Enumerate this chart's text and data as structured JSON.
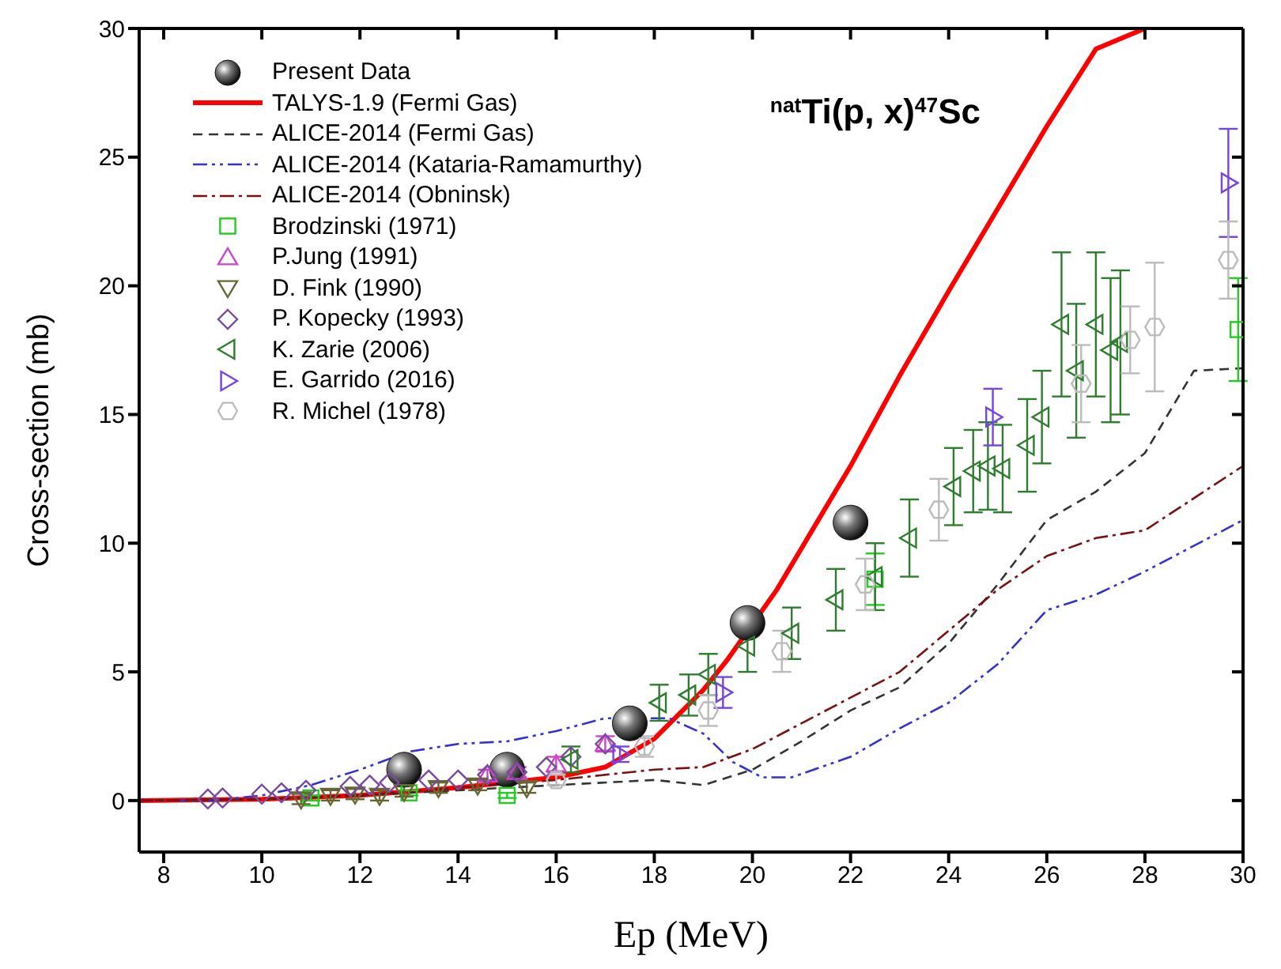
{
  "chart_data": {
    "type": "scatter",
    "title": "$^{nat}$Ti(p, x)$^{47}$Sc",
    "xlabel": "Ep (MeV)",
    "ylabel": "Cross-section (mb)",
    "xlim": [
      7.5,
      30
    ],
    "xticks": [
      8,
      10,
      12,
      14,
      16,
      18,
      20,
      22,
      24,
      26,
      28,
      30
    ],
    "ylim": [
      -2,
      30
    ],
    "yticks": [
      0,
      5,
      10,
      15,
      20,
      25,
      30
    ],
    "legend": "top left",
    "series": [
      {
        "name": "Present Data",
        "marker": "circle",
        "color": "#111111",
        "x": [
          12.9,
          15.0,
          17.5,
          19.9,
          22.0
        ],
        "values": [
          1.2,
          1.2,
          3.0,
          6.9,
          10.8
        ]
      },
      {
        "name": "TALYS-1.9 (Fermi Gas)",
        "type": "line",
        "line_style": "solid",
        "color": "#ff0000",
        "x": [
          7.5,
          10,
          12,
          14,
          16,
          17,
          18,
          19,
          19.5,
          20.5,
          21,
          22,
          23,
          24,
          25,
          26,
          27,
          28
        ],
        "values": [
          0,
          0.05,
          0.2,
          0.5,
          0.9,
          1.3,
          2.4,
          4.3,
          5.5,
          8.2,
          9.8,
          13,
          16.5,
          19.8,
          23,
          26.2,
          29.2,
          30
        ]
      },
      {
        "name": "ALICE-2014 (Fermi Gas)",
        "type": "line",
        "line_style": "dashed",
        "color": "#333333",
        "x": [
          7.5,
          10,
          12,
          14,
          16,
          18,
          19,
          20,
          21,
          22,
          23,
          24,
          25,
          26,
          27,
          28,
          29,
          30
        ],
        "values": [
          0,
          0.05,
          0.2,
          0.4,
          0.6,
          0.8,
          0.6,
          1.2,
          2.3,
          3.5,
          4.4,
          6.1,
          8.4,
          10.9,
          12.0,
          13.5,
          16.7,
          16.8
        ]
      },
      {
        "name": "ALICE-2014 (Kataria-Ramamurthy)",
        "type": "line",
        "line_style": "dashdotdot",
        "color": "#3333cc",
        "x": [
          7.5,
          9,
          10,
          11,
          12,
          13,
          14,
          15,
          16,
          17,
          18.3,
          19,
          19.6,
          20.2,
          20.8,
          22,
          23,
          24,
          25,
          26,
          27,
          28,
          30
        ],
        "values": [
          0,
          0,
          0.2,
          0.6,
          1.2,
          1.9,
          2.2,
          2.3,
          2.7,
          3.2,
          3.2,
          2.6,
          1.5,
          0.9,
          0.9,
          1.7,
          2.8,
          3.8,
          5.3,
          7.4,
          8.0,
          8.9,
          10.9
        ]
      },
      {
        "name": "ALICE-2014 (Obninsk)",
        "type": "line",
        "line_style": "dashdot",
        "color": "#7a1010",
        "x": [
          7.5,
          10,
          12,
          14,
          16,
          18,
          19,
          20,
          21,
          22,
          23,
          24,
          25,
          26,
          27,
          28,
          30
        ],
        "values": [
          0,
          0.05,
          0.2,
          0.5,
          0.8,
          1.2,
          1.3,
          2.0,
          3.0,
          4.0,
          5.0,
          6.6,
          8.2,
          9.5,
          10.2,
          10.5,
          13.0
        ]
      },
      {
        "name": "Brodzinski (1971)",
        "marker": "square",
        "color": "#22cc22",
        "x": [
          11.0,
          13.0,
          15.0,
          22.5,
          29.9
        ],
        "values": [
          0.1,
          0.3,
          0.2,
          8.6,
          18.3
        ],
        "errors": [
          0.1,
          0.1,
          0.1,
          1,
          2
        ]
      },
      {
        "name": "P.Jung (1991)",
        "marker": "triangle",
        "color": "#cc44cc",
        "x": [
          14.6,
          15.2,
          16.0,
          17.0
        ],
        "values": [
          1.0,
          1.1,
          1.4,
          2.2
        ],
        "errors": [
          0.2,
          0.2,
          0.3,
          0.3
        ]
      },
      {
        "name": "D. Fink (1990)",
        "marker": "triangle-down",
        "color": "#666633",
        "x": [
          10.8,
          11.4,
          11.9,
          12.4,
          12.9,
          13.6,
          14.4,
          15.4
        ],
        "values": [
          0.06,
          0.2,
          0.25,
          0.2,
          0.35,
          0.5,
          0.6,
          0.5
        ],
        "errors": [
          0.2,
          0.2,
          0.2,
          0.2,
          0.2,
          0.2,
          0.2,
          0.2
        ]
      },
      {
        "name": "P. Kopecky (1993)",
        "marker": "diamond",
        "color": "#7a4a9a",
        "x": [
          8.9,
          9.2,
          10.0,
          10.4,
          10.9,
          11.8,
          12.2,
          12.6,
          13.4,
          14.0,
          14.6,
          15.2,
          15.8,
          16.3,
          17.0
        ],
        "values": [
          0.06,
          0.1,
          0.25,
          0.3,
          0.4,
          0.55,
          0.6,
          0.7,
          0.8,
          0.8,
          1.0,
          1.1,
          1.3,
          1.7,
          2.2
        ]
      },
      {
        "name": "K. Zarie (2006)",
        "marker": "triangle-left",
        "color": "#2e7d2e",
        "x": [
          16.3,
          18.1,
          18.7,
          19.1,
          19.9,
          20.8,
          21.7,
          22.5,
          23.2,
          24.1,
          24.5,
          24.8,
          25.1,
          25.6,
          25.9,
          26.3,
          26.6,
          27.0,
          27.3,
          27.5
        ],
        "values": [
          1.6,
          3.8,
          4.1,
          4.9,
          6.0,
          6.5,
          7.8,
          8.7,
          10.2,
          12.2,
          12.8,
          13.0,
          12.9,
          13.8,
          14.9,
          18.5,
          16.7,
          18.5,
          17.5,
          17.8
        ],
        "errors": [
          0.5,
          0.7,
          0.8,
          0.8,
          1,
          1,
          1.2,
          1.3,
          1.5,
          1.5,
          1.6,
          1.7,
          1.7,
          1.8,
          1.8,
          2.8,
          2.6,
          2.8,
          2.8,
          2.8
        ]
      },
      {
        "name": "E. Garrido (2016)",
        "marker": "triangle-right",
        "color": "#7744dd",
        "x": [
          17.3,
          19.4,
          24.9,
          29.7
        ],
        "values": [
          1.8,
          4.2,
          14.9,
          24.0
        ],
        "errors": [
          0.3,
          0.6,
          1.1,
          2.1
        ]
      },
      {
        "name": "R. Michel (1978)",
        "marker": "circle",
        "color": "#bbbbbb",
        "x": [
          16.0,
          17.8,
          19.1,
          20.6,
          22.3,
          23.8,
          26.7,
          27.7,
          28.2,
          29.7
        ],
        "values": [
          0.8,
          2.1,
          3.5,
          5.8,
          8.4,
          11.3,
          16.2,
          17.9,
          18.4,
          21.0
        ],
        "errors": [
          0.2,
          0.4,
          0.6,
          0.8,
          1,
          1.2,
          1.5,
          1.3,
          2.5,
          1.5
        ]
      }
    ]
  }
}
